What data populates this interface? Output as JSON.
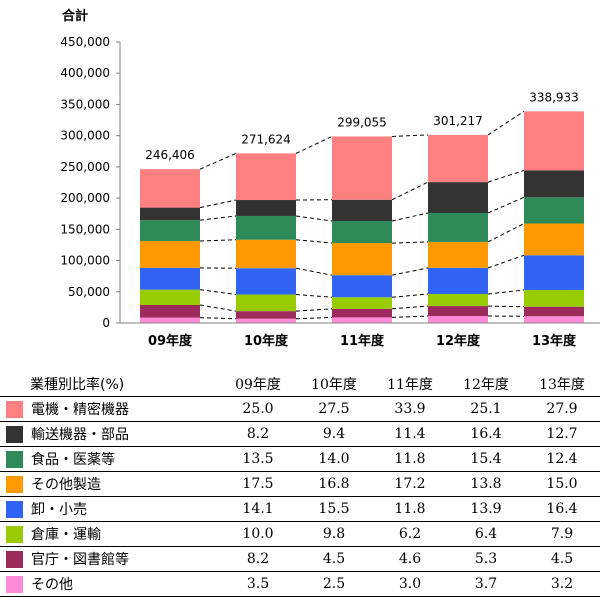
{
  "chart_data": {
    "type": "bar",
    "stacked": true,
    "ylabel": "合計",
    "ylim": [
      0,
      450000
    ],
    "yticks": [
      "0",
      "50,000",
      "100,000",
      "150,000",
      "200,000",
      "250,000",
      "300,000",
      "350,000",
      "400,000",
      "450,000"
    ],
    "categories": [
      "09年度",
      "10年度",
      "11年度",
      "12年度",
      "13年度"
    ],
    "totals": [
      246406,
      271624,
      299055,
      301217,
      338933
    ],
    "total_labels": [
      "246,406",
      "271,624",
      "299,055",
      "301,217",
      "338,933"
    ],
    "grid": false,
    "series": [
      {
        "name": "その他",
        "color": "#ff8ad8",
        "pct": [
          "3.5",
          "2.5",
          "3.0",
          "3.7",
          "3.2"
        ]
      },
      {
        "name": "官庁・図書館等",
        "color": "#9c2a5a",
        "pct": [
          "8.2",
          "4.5",
          "4.6",
          "5.3",
          "4.5"
        ]
      },
      {
        "name": "倉庫・運輸",
        "color": "#99cc00",
        "pct": [
          "10.0",
          "9.8",
          "6.2",
          "6.4",
          "7.9"
        ]
      },
      {
        "name": "卸・小売",
        "color": "#2f64f5",
        "pct": [
          "14.1",
          "15.5",
          "11.8",
          "13.9",
          "16.4"
        ]
      },
      {
        "name": "その他製造",
        "color": "#ff9900",
        "pct": [
          "17.5",
          "16.8",
          "17.2",
          "13.8",
          "15.0"
        ]
      },
      {
        "name": "食品・医薬等",
        "color": "#2e8b57",
        "pct": [
          "13.5",
          "14.0",
          "11.8",
          "15.4",
          "12.4"
        ]
      },
      {
        "name": "輸送機器・部品",
        "color": "#333333",
        "pct": [
          "8.2",
          "9.4",
          "11.4",
          "16.4",
          "12.7"
        ]
      },
      {
        "name": "電機・精密機器",
        "color": "#ff8080",
        "pct": [
          "25.0",
          "27.5",
          "33.9",
          "25.1",
          "27.9"
        ]
      }
    ]
  },
  "table": {
    "header_label": "業種別比率(%)",
    "years": [
      "09年度",
      "10年度",
      "11年度",
      "12年度",
      "13年度"
    ],
    "rows": [
      {
        "name": "電機・精密機器",
        "color": "#ff8080",
        "values": [
          "25.0",
          "27.5",
          "33.9",
          "25.1",
          "27.9"
        ]
      },
      {
        "name": "輸送機器・部品",
        "color": "#333333",
        "values": [
          "8.2",
          "9.4",
          "11.4",
          "16.4",
          "12.7"
        ]
      },
      {
        "name": "食品・医薬等",
        "color": "#2e8b57",
        "values": [
          "13.5",
          "14.0",
          "11.8",
          "15.4",
          "12.4"
        ]
      },
      {
        "name": "その他製造",
        "color": "#ff9900",
        "values": [
          "17.5",
          "16.8",
          "17.2",
          "13.8",
          "15.0"
        ]
      },
      {
        "name": "卸・小売",
        "color": "#2f64f5",
        "values": [
          "14.1",
          "15.5",
          "11.8",
          "13.9",
          "16.4"
        ]
      },
      {
        "name": "倉庫・運輸",
        "color": "#99cc00",
        "values": [
          "10.0",
          "9.8",
          "6.2",
          "6.4",
          "7.9"
        ]
      },
      {
        "name": "官庁・図書館等",
        "color": "#9c2a5a",
        "values": [
          "8.2",
          "4.5",
          "4.6",
          "5.3",
          "4.5"
        ]
      },
      {
        "name": "その他",
        "color": "#ff8ad8",
        "values": [
          "3.5",
          "2.5",
          "3.0",
          "3.7",
          "3.2"
        ]
      }
    ]
  }
}
